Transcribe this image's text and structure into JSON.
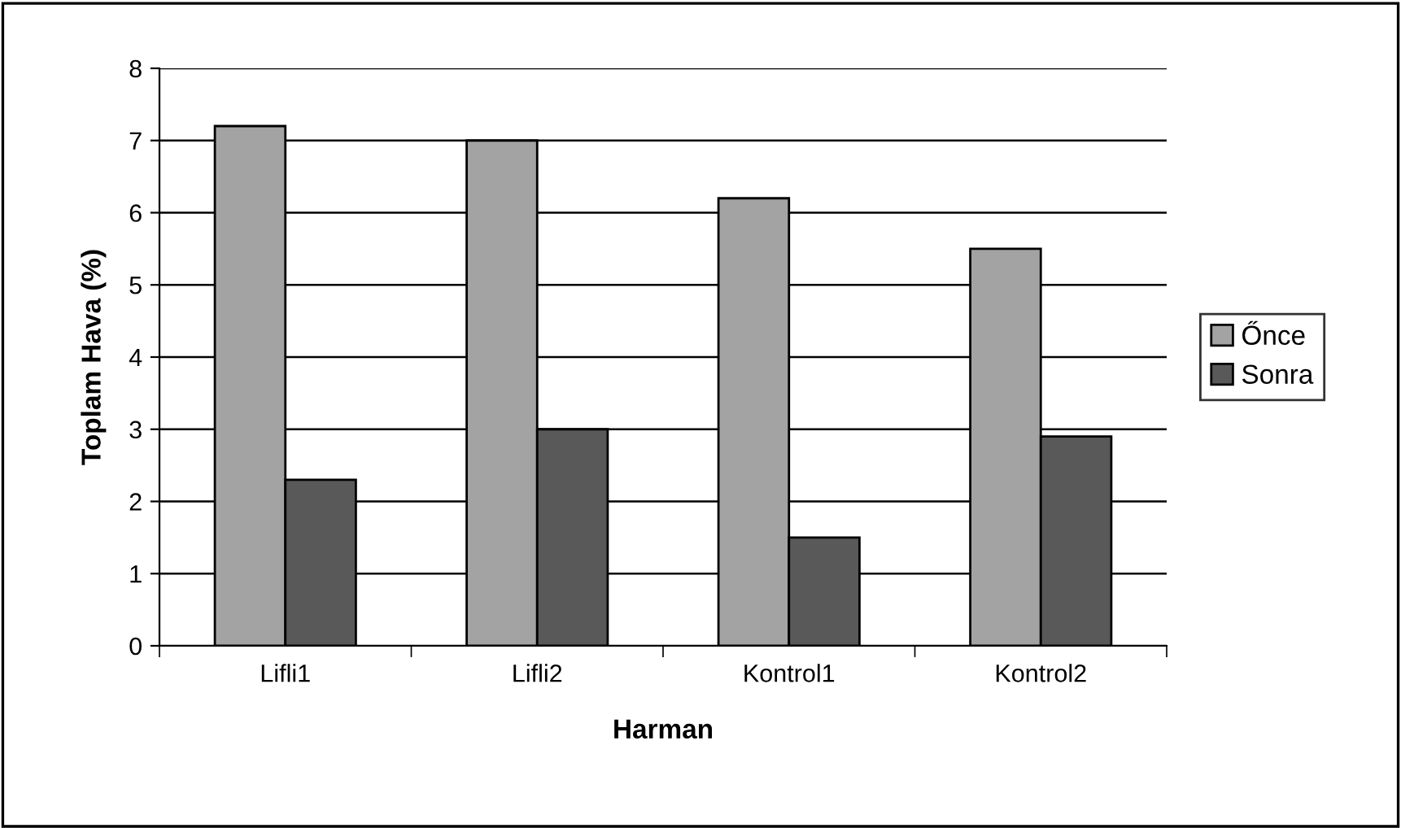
{
  "chart_data": {
    "type": "bar",
    "xlabel": "Harman",
    "ylabel": "Toplam Hava (%)",
    "categories": [
      "Lifli1",
      "Lifli2",
      "Kontrol1",
      "Kontrol2"
    ],
    "series": [
      {
        "name": "Őnce",
        "color": "#a3a3a3",
        "values": [
          7.2,
          7.0,
          6.2,
          5.5
        ]
      },
      {
        "name": "Sonra",
        "color": "#595959",
        "values": [
          2.3,
          3.0,
          1.5,
          2.9
        ]
      }
    ],
    "ylim": [
      0,
      8
    ],
    "yticks": [
      0,
      1,
      2,
      3,
      4,
      5,
      6,
      7,
      8
    ],
    "grid": "y",
    "legend": "right"
  }
}
